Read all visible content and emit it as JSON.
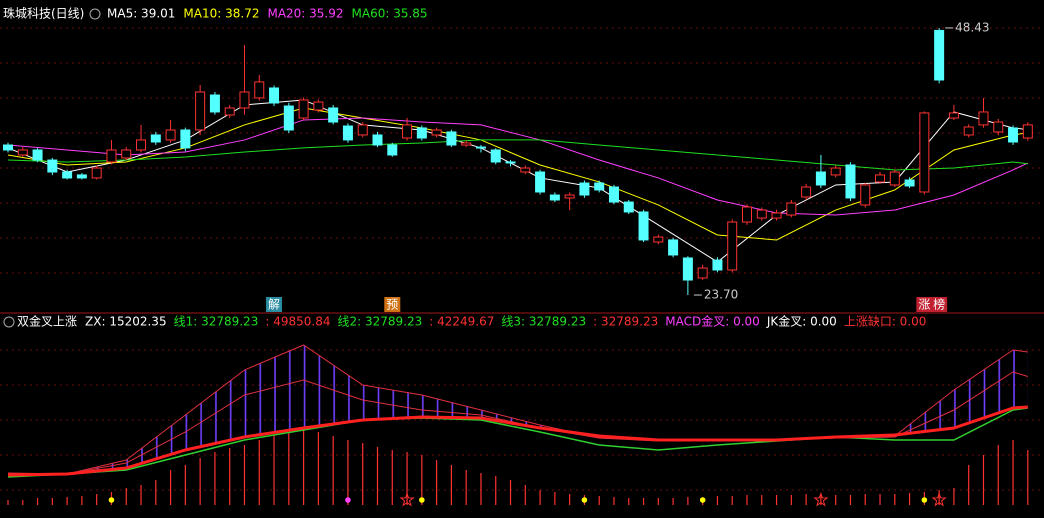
{
  "chart_data": [
    {
      "type": "candlestick",
      "title": "珠城科技(日线)",
      "up_color": "#ff3232",
      "down_color": "#54ffff",
      "ylim": [
        23.24,
        49.35
      ],
      "ohlc": [
        [
          37.59,
          37.8,
          36.9,
          37.13
        ],
        [
          36.67,
          37.4,
          36.5,
          37.13
        ],
        [
          37.13,
          37.3,
          36.0,
          36.2
        ],
        [
          36.2,
          36.4,
          34.8,
          35.09
        ],
        [
          35.09,
          35.3,
          34.4,
          34.54
        ],
        [
          34.82,
          35.0,
          34.4,
          34.54
        ],
        [
          34.54,
          35.7,
          34.4,
          35.46
        ],
        [
          36.02,
          38.06,
          35.8,
          37.13
        ],
        [
          36.39,
          37.4,
          36.2,
          37.13
        ],
        [
          37.13,
          39.45,
          36.9,
          38.06
        ],
        [
          38.52,
          38.8,
          37.6,
          37.87
        ],
        [
          38.06,
          39.91,
          37.8,
          38.98
        ],
        [
          38.98,
          39.2,
          37.0,
          37.32
        ],
        [
          38.98,
          43.15,
          38.5,
          42.5
        ],
        [
          42.22,
          42.5,
          40.4,
          40.65
        ],
        [
          40.37,
          41.3,
          40.1,
          41.02
        ],
        [
          41.02,
          46.85,
          40.4,
          42.5
        ],
        [
          41.95,
          44.08,
          41.7,
          43.43
        ],
        [
          42.87,
          43.1,
          41.2,
          41.48
        ],
        [
          41.2,
          41.5,
          38.7,
          38.98
        ],
        [
          40.09,
          42.0,
          39.9,
          41.76
        ],
        [
          40.83,
          41.8,
          40.6,
          41.57
        ],
        [
          41.02,
          41.3,
          39.5,
          39.72
        ],
        [
          39.35,
          39.6,
          37.8,
          38.06
        ],
        [
          38.52,
          39.7,
          38.3,
          39.45
        ],
        [
          38.52,
          38.8,
          37.4,
          37.59
        ],
        [
          37.59,
          37.8,
          36.5,
          36.67
        ],
        [
          38.24,
          40.09,
          38.0,
          39.45
        ],
        [
          39.17,
          39.4,
          38.0,
          38.24
        ],
        [
          38.52,
          39.2,
          38.3,
          38.98
        ],
        [
          38.8,
          39.0,
          37.4,
          37.59
        ],
        [
          37.59,
          38.0,
          37.4,
          37.78
        ],
        [
          37.4,
          37.6,
          36.9,
          37.32
        ],
        [
          37.13,
          37.3,
          35.8,
          36.02
        ],
        [
          36.02,
          36.2,
          35.6,
          35.95
        ],
        [
          35.09,
          35.7,
          34.9,
          35.46
        ],
        [
          35.09,
          35.3,
          33.0,
          33.24
        ],
        [
          32.96,
          33.2,
          32.3,
          32.5
        ],
        [
          32.69,
          33.2,
          31.57,
          32.96
        ],
        [
          34.07,
          34.3,
          32.7,
          32.96
        ],
        [
          34.07,
          34.3,
          33.2,
          33.43
        ],
        [
          33.7,
          33.9,
          32.1,
          32.31
        ],
        [
          32.31,
          32.5,
          31.2,
          31.39
        ],
        [
          31.39,
          31.6,
          28.6,
          28.8
        ],
        [
          28.61,
          29.3,
          28.4,
          29.07
        ],
        [
          28.8,
          29.0,
          27.2,
          27.41
        ],
        [
          27.13,
          27.3,
          23.7,
          25.09
        ],
        [
          25.28,
          26.5,
          25.1,
          26.2
        ],
        [
          26.94,
          27.2,
          25.8,
          26.02
        ],
        [
          26.02,
          30.7,
          25.8,
          30.46
        ],
        [
          30.46,
          32.1,
          30.2,
          31.85
        ],
        [
          30.83,
          31.8,
          30.6,
          31.57
        ],
        [
          30.83,
          31.6,
          30.6,
          31.3
        ],
        [
          31.11,
          32.5,
          30.9,
          32.22
        ],
        [
          32.78,
          34.0,
          32.5,
          33.7
        ],
        [
          35.09,
          36.67,
          33.6,
          33.89
        ],
        [
          34.82,
          35.7,
          34.6,
          35.46
        ],
        [
          35.74,
          36.0,
          32.4,
          32.69
        ],
        [
          32.04,
          34.1,
          31.8,
          33.89
        ],
        [
          34.17,
          35.1,
          34.0,
          34.82
        ],
        [
          33.89,
          35.3,
          33.7,
          35.09
        ],
        [
          34.35,
          34.6,
          33.6,
          33.8
        ],
        [
          33.24,
          40.7,
          33.0,
          40.56
        ],
        [
          48.2,
          48.43,
          43.3,
          43.61
        ],
        [
          40.09,
          41.3,
          39.9,
          40.56
        ],
        [
          38.52,
          39.5,
          38.3,
          39.26
        ],
        [
          39.45,
          41.95,
          39.2,
          40.65
        ],
        [
          38.8,
          40.0,
          38.5,
          39.72
        ],
        [
          39.17,
          39.4,
          37.6,
          37.87
        ],
        [
          38.24,
          39.7,
          38.0,
          39.45
        ]
      ],
      "x": [
        0,
        4,
        8,
        12,
        16,
        20,
        24,
        28,
        32,
        36,
        40,
        44,
        48,
        52,
        56,
        60,
        64,
        68,
        69
      ],
      "series": [
        {
          "name": "MA5: 39.01",
          "color": "#ffffff",
          "values": [
            37.32,
            35.09,
            36.2,
            38.06,
            41.3,
            41.76,
            39.45,
            38.98,
            37.32,
            34.54,
            33.61,
            30.19,
            26.76,
            31.11,
            33.89,
            34.17,
            40.65,
            39.17,
            39.01
          ]
        },
        {
          "name": "MA10: 38.72",
          "color": "#ffff00",
          "values": [
            36.67,
            35.74,
            36.02,
            37.32,
            39.45,
            41.02,
            40.09,
            39.17,
            38.06,
            35.74,
            34.17,
            32.04,
            29.26,
            28.8,
            31.57,
            33.43,
            37.13,
            38.52,
            38.72
          ]
        },
        {
          "name": "MA20: 35.92",
          "color": "#ff40ff",
          "values": [
            37.59,
            37.13,
            36.67,
            36.94,
            38.06,
            39.91,
            40.09,
            39.72,
            39.45,
            38.06,
            36.2,
            34.54,
            32.5,
            31.3,
            31.11,
            31.57,
            32.96,
            35.28,
            35.92
          ]
        },
        {
          "name": "MA60: 35.85",
          "color": "#20e020",
          "values": [
            36.2,
            36.02,
            36.2,
            36.48,
            36.94,
            37.32,
            37.59,
            37.78,
            38.06,
            38.06,
            37.59,
            37.13,
            36.67,
            36.2,
            35.74,
            35.28,
            35.46,
            36.02,
            35.85
          ]
        }
      ],
      "extremes": [
        {
          "index": 63,
          "value": 48.43,
          "label": "48.43"
        },
        {
          "index": 46,
          "value": 23.7,
          "label": "23.70"
        }
      ],
      "tags": [
        {
          "index": 18,
          "text": "解",
          "color": "#2a8ca0"
        },
        {
          "index": 26,
          "text": "预",
          "color": "#d07010"
        },
        {
          "index": 62,
          "text": "涨",
          "color": "#c02030"
        },
        {
          "index": 63,
          "text": "榜",
          "color": "#c02030"
        }
      ]
    },
    {
      "type": "indicator",
      "title": "双金叉上涨",
      "legend": [
        {
          "text": "ZX: 15202.35",
          "color": "#ffffff"
        },
        {
          "text": "线1: 32789.23",
          "color": "#20e020"
        },
        {
          "text": ": 49850.84",
          "color": "#ff3232"
        },
        {
          "text": "线2: 32789.23",
          "color": "#20e020"
        },
        {
          "text": ": 42249.67",
          "color": "#ff3232"
        },
        {
          "text": "线3: 32789.23",
          "color": "#20e020"
        },
        {
          "text": ": 32789.23",
          "color": "#ff3232"
        },
        {
          "text": "MACD金叉: 0.00",
          "color": "#ff40ff"
        },
        {
          "text": "JK金叉: 0.00",
          "color": "#ffffff"
        },
        {
          "text": "上涨缺口: 0.00",
          "color": "#ff3232"
        }
      ],
      "ylim": [
        2390,
        56675
      ],
      "x": [
        0,
        4,
        8,
        12,
        16,
        20,
        24,
        28,
        32,
        36,
        40,
        44,
        48,
        52,
        56,
        60,
        64,
        68,
        69
      ],
      "series": [
        {
          "color": "#30d030",
          "line_width": 1.5,
          "values": [
            11076,
            12006,
            13247,
            17900,
            22553,
            25655,
            28757,
            29377,
            28757,
            25035,
            21002,
            19451,
            21002,
            22243,
            23484,
            22553,
            22553,
            31859,
            32479
          ]
        },
        {
          "color": "#e03040",
          "line_width": 1,
          "values": [
            12316,
            12006,
            16349,
            30308,
            44267,
            52022,
            39614,
            36512,
            31859,
            27206,
            23173,
            22553,
            22553,
            22553,
            23484,
            23794,
            38063,
            50471,
            49850.84
          ]
        },
        {
          "color": "#e03040",
          "line_width": 1,
          "values": [
            12006,
            12006,
            15418,
            25035,
            36512,
            41165,
            34961,
            31859,
            30308,
            26276,
            23173,
            22243,
            22243,
            22553,
            23173,
            23484,
            31859,
            43647,
            42249.67
          ]
        },
        {
          "color": "#ff2020",
          "line_width": 3,
          "values": [
            11696,
            12006,
            13867,
            19451,
            23484,
            26276,
            28757,
            29688,
            29377,
            26276,
            23794,
            22553,
            22553,
            22553,
            23484,
            24104,
            26276,
            32479,
            32789.23
          ]
        }
      ],
      "sticks_color": "#ff3232",
      "sticks": [
        3941,
        3941,
        4561,
        4561,
        4872,
        5182,
        5802,
        6423,
        7664,
        8594,
        10145,
        13247,
        14798,
        16969,
        18830,
        20071,
        21002,
        22553,
        24104,
        25035,
        25655,
        25035,
        23794,
        22553,
        21622,
        20381,
        19451,
        18830,
        17900,
        16349,
        14798,
        13247,
        12316,
        11386,
        10145,
        8594,
        7043,
        6423,
        5802,
        5492,
        5182,
        4872,
        4561,
        4561,
        4561,
        4561,
        4872,
        4872,
        5182,
        5182,
        5492,
        5492,
        5492,
        5492,
        5802,
        5802,
        5492,
        5492,
        5802,
        5802,
        5802,
        6112,
        6423,
        7043,
        7664,
        14798,
        17900,
        21002,
        22553,
        19451
      ],
      "signals": [
        {
          "index": 7,
          "kind": "dot",
          "color": "#ffff00"
        },
        {
          "index": 23,
          "kind": "dot",
          "color": "#ff40ff"
        },
        {
          "index": 28,
          "kind": "dot",
          "color": "#ffff00"
        },
        {
          "index": 39,
          "kind": "dot",
          "color": "#ffff00"
        },
        {
          "index": 47,
          "kind": "dot",
          "color": "#ffff00"
        },
        {
          "index": 62,
          "kind": "dot",
          "color": "#ffff00"
        },
        {
          "index": 27,
          "kind": "star",
          "color": "#ff3232"
        },
        {
          "index": 55,
          "kind": "star",
          "color": "#ff3232"
        },
        {
          "index": 63,
          "kind": "star",
          "color": "#ff3232"
        }
      ]
    }
  ]
}
